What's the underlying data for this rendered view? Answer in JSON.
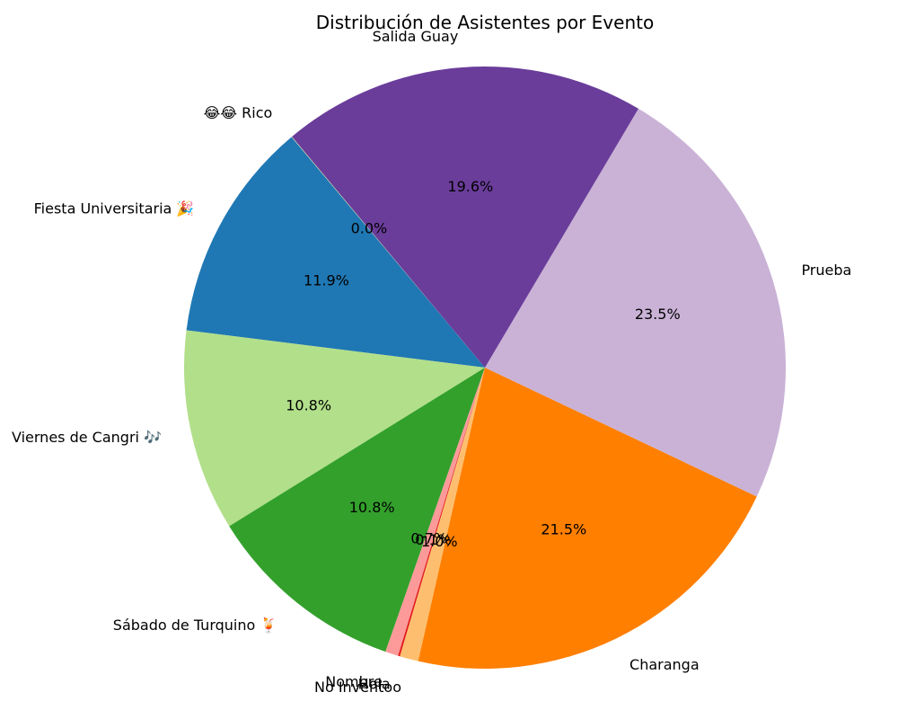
{
  "chart_data": {
    "type": "pie",
    "title": "Distribución de Asistentes por Evento",
    "start_angle_deg": 130,
    "direction": "counterclockwise",
    "slices": [
      {
        "label": "Fiesta Universitaria 🎉",
        "value": 11.9,
        "pct_label": "11.9%",
        "color": "#1f78b4"
      },
      {
        "label": "Viernes de Cangri 🎶",
        "value": 10.8,
        "pct_label": "10.8%",
        "color": "#b2df8a"
      },
      {
        "label": "Sábado de Turquino 🍹",
        "value": 10.8,
        "pct_label": "10.8%",
        "color": "#33a02c"
      },
      {
        "label": "Nombre",
        "value": 0.7,
        "pct_label": "0.7%",
        "color": "#fb9a99"
      },
      {
        "label": "Hola",
        "value": 0.1,
        "pct_label": "0.1%",
        "color": "#e31a1c"
      },
      {
        "label": "No Inventoo",
        "value": 1.0,
        "pct_label": "1.0%",
        "color": "#fdbf6f"
      },
      {
        "label": "Charanga",
        "value": 21.5,
        "pct_label": "21.5%",
        "color": "#ff7f00"
      },
      {
        "label": "Prueba",
        "value": 23.5,
        "pct_label": "23.5%",
        "color": "#cab2d6"
      },
      {
        "label": "Salida Guay",
        "value": 19.6,
        "pct_label": "19.6%",
        "color": "#6a3d9a"
      },
      {
        "label": "😂😂 Rico",
        "value": 0.02,
        "pct_label": "0.0%",
        "color": "#ffff99"
      }
    ]
  }
}
